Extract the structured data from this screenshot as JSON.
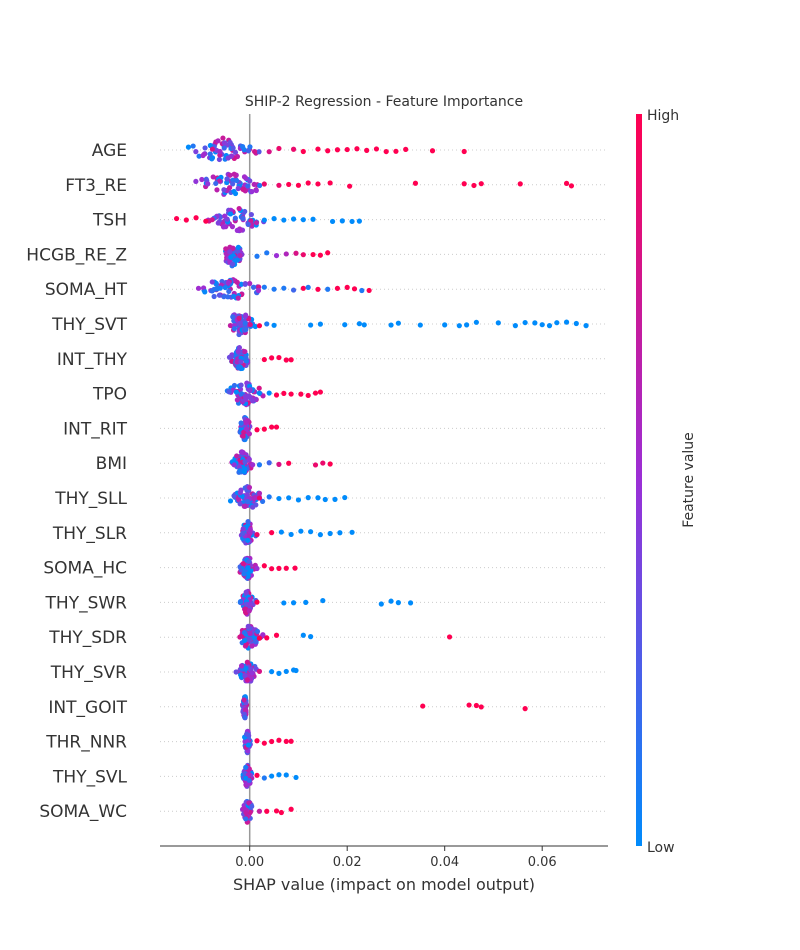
{
  "chart_data": {
    "type": "scatter",
    "subtype": "shap-beeswarm",
    "title": "SHIP-2 Regression - Feature Importance",
    "xlabel": "SHAP value (impact on model output)",
    "xlim": [
      -0.0184,
      0.0735
    ],
    "x_ticks": [
      {
        "value": 0.0,
        "label": "0.00"
      },
      {
        "value": 0.02,
        "label": "0.02"
      },
      {
        "value": 0.04,
        "label": "0.04"
      },
      {
        "value": 0.06,
        "label": "0.06"
      }
    ],
    "colorbar": {
      "label": "Feature value",
      "high_label": "High",
      "low_label": "Low",
      "low_color": "#008bfb",
      "high_color": "#ff0051",
      "mid_color": "#9b2fd6"
    },
    "features": [
      {
        "name": "AGE",
        "center": -0.0055,
        "span": 0.0085,
        "points": [
          [
            0.011,
            1
          ],
          [
            0.014,
            1
          ],
          [
            0.016,
            1
          ],
          [
            0.018,
            1
          ],
          [
            0.02,
            1
          ],
          [
            0.022,
            1
          ],
          [
            0.024,
            1
          ],
          [
            0.026,
            1
          ],
          [
            0.028,
            1
          ],
          [
            0.03,
            1
          ],
          [
            0.032,
            1
          ],
          [
            0.0375,
            1
          ],
          [
            0.044,
            1
          ],
          [
            0.006,
            0.9
          ],
          [
            0.009,
            0.9
          ],
          [
            0.004,
            0.8
          ]
        ]
      },
      {
        "name": "FT3_RE",
        "center": -0.004,
        "span": 0.009,
        "points": [
          [
            0.008,
            1
          ],
          [
            0.01,
            1
          ],
          [
            0.012,
            1
          ],
          [
            0.014,
            1
          ],
          [
            0.0165,
            1
          ],
          [
            0.0205,
            1
          ],
          [
            0.034,
            1
          ],
          [
            0.044,
            1
          ],
          [
            0.046,
            1
          ],
          [
            0.0475,
            1
          ],
          [
            0.0555,
            1
          ],
          [
            0.065,
            1
          ],
          [
            0.066,
            1
          ],
          [
            0.003,
            0.9
          ],
          [
            0.006,
            0.9
          ]
        ]
      },
      {
        "name": "TSH",
        "center": -0.0025,
        "span": 0.007,
        "points": [
          [
            -0.015,
            1
          ],
          [
            -0.013,
            1
          ],
          [
            -0.011,
            1
          ],
          [
            -0.009,
            1
          ],
          [
            0.003,
            0
          ],
          [
            0.005,
            0
          ],
          [
            0.007,
            0
          ],
          [
            0.009,
            0
          ],
          [
            0.011,
            0
          ],
          [
            0.013,
            0
          ],
          [
            0.017,
            0
          ],
          [
            0.019,
            0
          ],
          [
            0.021,
            0
          ],
          [
            0.0225,
            0
          ]
        ]
      },
      {
        "name": "HCGB_RE_Z",
        "center": -0.0035,
        "span": 0.0025,
        "points": [
          [
            0.0015,
            0.1
          ],
          [
            0.0035,
            0.1
          ],
          [
            0.0055,
            0.5
          ],
          [
            0.0075,
            0.6
          ],
          [
            0.0095,
            0.8
          ],
          [
            0.011,
            0.9
          ],
          [
            0.013,
            1
          ],
          [
            0.0145,
            1
          ],
          [
            0.016,
            1
          ]
        ]
      },
      {
        "name": "SOMA_HT",
        "center": -0.0045,
        "span": 0.0075,
        "points": [
          [
            0.003,
            0.1
          ],
          [
            0.005,
            0.1
          ],
          [
            0.007,
            0.1
          ],
          [
            0.009,
            0.2
          ],
          [
            0.011,
            1
          ],
          [
            0.012,
            0.1
          ],
          [
            0.014,
            1
          ],
          [
            0.016,
            0.1
          ],
          [
            0.018,
            1
          ],
          [
            0.02,
            1
          ],
          [
            0.0215,
            1
          ],
          [
            0.023,
            0.1
          ],
          [
            0.0245,
            1
          ]
        ]
      },
      {
        "name": "THY_SVT",
        "center": -0.002,
        "span": 0.004,
        "points": [
          [
            0.002,
            1
          ],
          [
            0.0035,
            0.1
          ],
          [
            0.005,
            0
          ],
          [
            0.0125,
            0
          ],
          [
            0.0145,
            0
          ],
          [
            0.0195,
            0
          ],
          [
            0.0225,
            0
          ],
          [
            0.0235,
            0
          ],
          [
            0.029,
            0
          ],
          [
            0.0305,
            0
          ],
          [
            0.035,
            0
          ],
          [
            0.04,
            0
          ],
          [
            0.043,
            0
          ],
          [
            0.0445,
            0
          ],
          [
            0.0465,
            0
          ],
          [
            0.051,
            0
          ],
          [
            0.0545,
            0
          ],
          [
            0.0565,
            0
          ],
          [
            0.0585,
            0
          ],
          [
            0.06,
            0
          ],
          [
            0.0615,
            0
          ],
          [
            0.063,
            0
          ],
          [
            0.065,
            0
          ],
          [
            0.067,
            0
          ],
          [
            0.069,
            0
          ]
        ]
      },
      {
        "name": "INT_THY",
        "center": -0.002,
        "span": 0.0025,
        "points": [
          [
            0.003,
            1
          ],
          [
            0.0045,
            1
          ],
          [
            0.006,
            1
          ],
          [
            0.0075,
            1
          ],
          [
            0.0085,
            1
          ]
        ]
      },
      {
        "name": "TPO",
        "center": -0.001,
        "span": 0.0055,
        "points": [
          [
            0.002,
            0
          ],
          [
            0.004,
            0
          ],
          [
            0.0055,
            1
          ],
          [
            0.007,
            1
          ],
          [
            0.0085,
            1
          ],
          [
            0.0105,
            1
          ],
          [
            0.012,
            1
          ],
          [
            0.0135,
            1
          ],
          [
            0.0145,
            1
          ]
        ]
      },
      {
        "name": "INT_RIT",
        "center": -0.001,
        "span": 0.0015,
        "points": [
          [
            0.0015,
            1
          ],
          [
            0.003,
            1
          ],
          [
            0.0045,
            1
          ],
          [
            0.0055,
            1
          ]
        ]
      },
      {
        "name": "BMI",
        "center": -0.0015,
        "span": 0.0025,
        "points": [
          [
            0.002,
            0.1
          ],
          [
            0.004,
            0.2
          ],
          [
            0.006,
            0.8
          ],
          [
            0.008,
            1
          ],
          [
            0.0135,
            0.9
          ],
          [
            0.015,
            0.9
          ],
          [
            0.0165,
            1
          ]
        ]
      },
      {
        "name": "THY_SLL",
        "center": -0.0005,
        "span": 0.004,
        "points": [
          [
            0.002,
            0.9
          ],
          [
            0.004,
            0.1
          ],
          [
            0.006,
            0
          ],
          [
            0.008,
            0
          ],
          [
            0.01,
            0
          ],
          [
            0.012,
            0
          ],
          [
            0.014,
            0
          ],
          [
            0.0155,
            0
          ],
          [
            0.0175,
            0
          ],
          [
            0.0195,
            0
          ]
        ]
      },
      {
        "name": "THY_SLR",
        "center": -0.0005,
        "span": 0.002,
        "points": [
          [
            0.0015,
            0.9
          ],
          [
            0.0045,
            1
          ],
          [
            0.0065,
            0
          ],
          [
            0.0085,
            0
          ],
          [
            0.0105,
            0
          ],
          [
            0.0125,
            0
          ],
          [
            0.0145,
            0
          ],
          [
            0.0165,
            0
          ],
          [
            0.0185,
            0
          ],
          [
            0.021,
            0
          ]
        ]
      },
      {
        "name": "SOMA_HC",
        "center": -0.0005,
        "span": 0.002,
        "points": [
          [
            0.0015,
            0.5
          ],
          [
            0.003,
            1
          ],
          [
            0.0045,
            1
          ],
          [
            0.006,
            1
          ],
          [
            0.0075,
            1
          ],
          [
            0.0093,
            1
          ]
        ]
      },
      {
        "name": "THY_SWR",
        "center": -0.0005,
        "span": 0.002,
        "points": [
          [
            0.0015,
            1
          ],
          [
            0.007,
            0
          ],
          [
            0.009,
            0
          ],
          [
            0.0115,
            0
          ],
          [
            0.015,
            0
          ],
          [
            0.027,
            0
          ],
          [
            0.029,
            0
          ],
          [
            0.0305,
            0
          ],
          [
            0.033,
            0
          ]
        ]
      },
      {
        "name": "THY_SDR",
        "center": 0.0,
        "span": 0.003,
        "points": [
          [
            0.002,
            1
          ],
          [
            0.0035,
            1
          ],
          [
            0.0055,
            1
          ],
          [
            0.011,
            0
          ],
          [
            0.0125,
            0
          ],
          [
            0.041,
            1
          ]
        ]
      },
      {
        "name": "THY_SVR",
        "center": -0.0005,
        "span": 0.0025,
        "points": [
          [
            0.002,
            0.8
          ],
          [
            0.0045,
            0
          ],
          [
            0.006,
            0
          ],
          [
            0.0075,
            0
          ],
          [
            0.009,
            0
          ],
          [
            0.0095,
            0
          ]
        ]
      },
      {
        "name": "INT_GOIT",
        "center": -0.001,
        "span": 0.0006,
        "points": [
          [
            0.0355,
            1
          ],
          [
            0.045,
            1
          ],
          [
            0.0465,
            1
          ],
          [
            0.0475,
            1
          ],
          [
            0.0565,
            1
          ]
        ]
      },
      {
        "name": "THR_NNR",
        "center": -0.0005,
        "span": 0.0008,
        "points": [
          [
            0.0015,
            1
          ],
          [
            0.003,
            1
          ],
          [
            0.0045,
            1
          ],
          [
            0.006,
            1
          ],
          [
            0.0075,
            1
          ],
          [
            0.0085,
            1
          ]
        ]
      },
      {
        "name": "THY_SVL",
        "center": -0.0005,
        "span": 0.0012,
        "points": [
          [
            0.0015,
            1
          ],
          [
            0.003,
            0.1
          ],
          [
            0.0045,
            0
          ],
          [
            0.006,
            0
          ],
          [
            0.0075,
            0
          ],
          [
            0.0095,
            0
          ]
        ]
      },
      {
        "name": "SOMA_WC",
        "center": -0.0005,
        "span": 0.0015,
        "points": [
          [
            0.002,
            0.7
          ],
          [
            0.0035,
            1
          ],
          [
            0.0055,
            1
          ],
          [
            0.0065,
            1
          ],
          [
            0.0085,
            1
          ]
        ]
      }
    ]
  }
}
